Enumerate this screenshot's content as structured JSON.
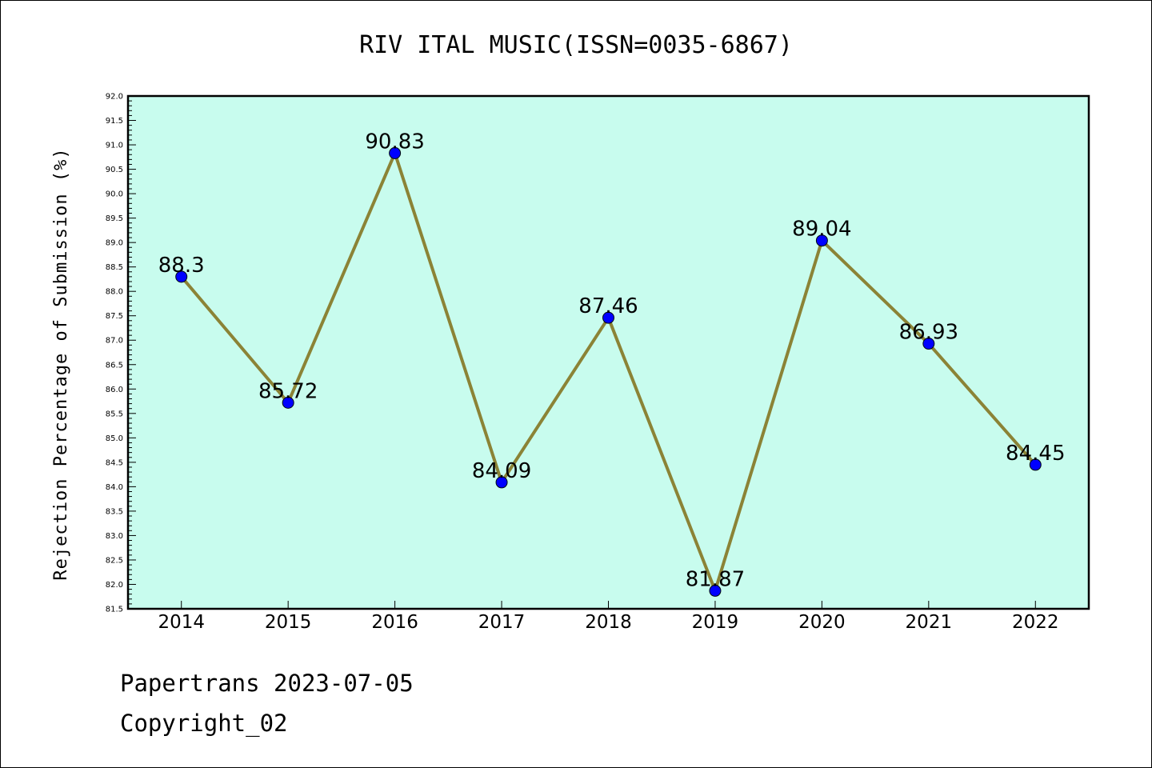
{
  "footer": {
    "line1": "Papertrans 2023-07-05",
    "line2": "Copyright_02"
  },
  "chart_data": {
    "type": "line",
    "title": "RIV ITAL MUSIC(ISSN=0035-6867)",
    "xlabel": "",
    "ylabel": "Rejection Percentage of Submission (%)",
    "categories": [
      "2014",
      "2015",
      "2016",
      "2017",
      "2018",
      "2019",
      "2020",
      "2021",
      "2022"
    ],
    "values": [
      88.3,
      85.72,
      90.83,
      84.09,
      87.46,
      81.87,
      89.04,
      86.93,
      84.45
    ],
    "data_labels": [
      "88.3",
      "85.72",
      "90.83",
      "84.09",
      "87.46",
      "81.87",
      "89.04",
      "86.93",
      "84.45"
    ],
    "ylim": [
      81.5,
      92.0
    ],
    "ytick_step": 0.5,
    "grid": false,
    "legend": "none",
    "colors": {
      "background": "#c8fcee",
      "line": "#8b8336",
      "marker": "#0000ff"
    }
  }
}
